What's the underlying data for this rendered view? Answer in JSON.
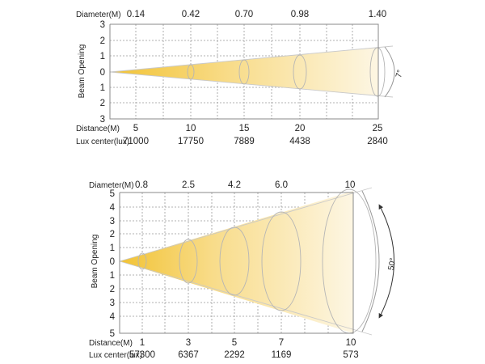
{
  "beam_7": {
    "diameter_label": "Diameter(M)",
    "diameters": [
      "0.14",
      "0.42",
      "0.70",
      "0.98",
      "1.40"
    ],
    "y_ticks": [
      "3",
      "2",
      "1",
      "0",
      "1",
      "2",
      "3"
    ],
    "y_label": "Beam Opening",
    "distance_label": "Distance(M)",
    "distances": [
      "5",
      "10",
      "15",
      "20",
      "25"
    ],
    "lux_label": "Lux center(lux)",
    "lux": [
      "71000",
      "17750",
      "7889",
      "4438",
      "2840"
    ],
    "angle_label": "7°"
  },
  "beam_50": {
    "diameter_label": "Diameter(M)",
    "diameters": [
      "0.8",
      "2.5",
      "4.2",
      "6.0",
      "10"
    ],
    "y_ticks": [
      "5",
      "4",
      "3",
      "2",
      "1",
      "0",
      "1",
      "2",
      "3",
      "4",
      "5"
    ],
    "y_label": "Beam Opening",
    "distance_label": "Distance(M)",
    "distances": [
      "1",
      "3",
      "5",
      "7",
      "10"
    ],
    "lux_label": "Lux center(lux)",
    "lux": [
      "57300",
      "6367",
      "2292",
      "1169",
      "573"
    ],
    "angle_label": "50°"
  },
  "colors": {
    "beam_core": "#f2c63a",
    "beam_fade": "#fdf5df",
    "axis": "#888888"
  }
}
